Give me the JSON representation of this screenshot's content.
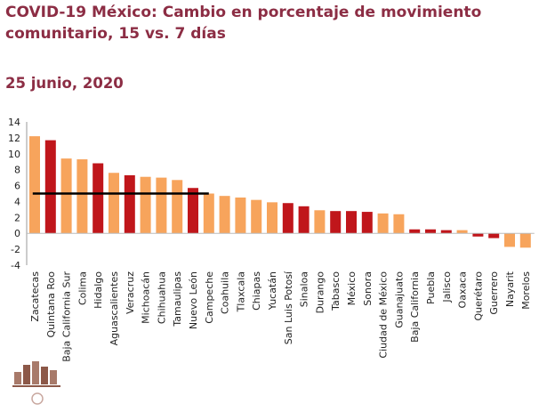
{
  "header": {
    "title": "COVID-19 México: Cambio en porcentaje de movimiento comunitario, 15 vs. 7 días",
    "date": "25 junio, 2020"
  },
  "colors": {
    "title": "#8c2d44",
    "dark_bar": "#c0161b",
    "light_bar": "#f7a45c",
    "reference_line": "#000000"
  },
  "chart_data": {
    "type": "bar",
    "title": "",
    "xlabel": "",
    "ylabel": "",
    "ylim": [
      -4,
      14
    ],
    "yticks": [
      -4,
      -2,
      0,
      2,
      4,
      6,
      8,
      10,
      12,
      14
    ],
    "grid": false,
    "reference_line": {
      "value": 5,
      "from": "Quintana Roo",
      "to": "Campeche"
    },
    "categories": [
      "Zacatecas",
      "Quintana Roo",
      "Baja California Sur",
      "Colima",
      "Hidalgo",
      "Aguascalientes",
      "Veracruz",
      "Michoacán",
      "Chihuahua",
      "Tamaulipas",
      "Nuevo León",
      "Campeche",
      "Coahuila",
      "Tlaxcala",
      "Chiapas",
      "Yucatán",
      "San Luis Potosí",
      "Sinaloa",
      "Durango",
      "Tabasco",
      "México",
      "Sonora",
      "Ciudad de México",
      "Guanajuato",
      "Baja California",
      "Puebla",
      "Jalisco",
      "Oaxaca",
      "Querétaro",
      "Guerrero",
      "Nayarit",
      "Morelos"
    ],
    "values": [
      12.2,
      11.7,
      9.4,
      9.3,
      8.8,
      7.6,
      7.3,
      7.1,
      7.0,
      6.7,
      5.7,
      5.0,
      4.7,
      4.5,
      4.2,
      3.9,
      3.8,
      3.4,
      2.9,
      2.8,
      2.8,
      2.7,
      2.5,
      2.4,
      0.5,
      0.5,
      0.4,
      0.4,
      -0.4,
      -0.6,
      -1.7,
      -1.8
    ],
    "bar_colors": [
      "light",
      "dark",
      "light",
      "light",
      "dark",
      "light",
      "dark",
      "light",
      "light",
      "light",
      "dark",
      "light",
      "light",
      "light",
      "light",
      "light",
      "dark",
      "dark",
      "light",
      "dark",
      "dark",
      "dark",
      "light",
      "light",
      "dark",
      "dark",
      "dark",
      "light",
      "dark",
      "dark",
      "light",
      "light"
    ]
  }
}
